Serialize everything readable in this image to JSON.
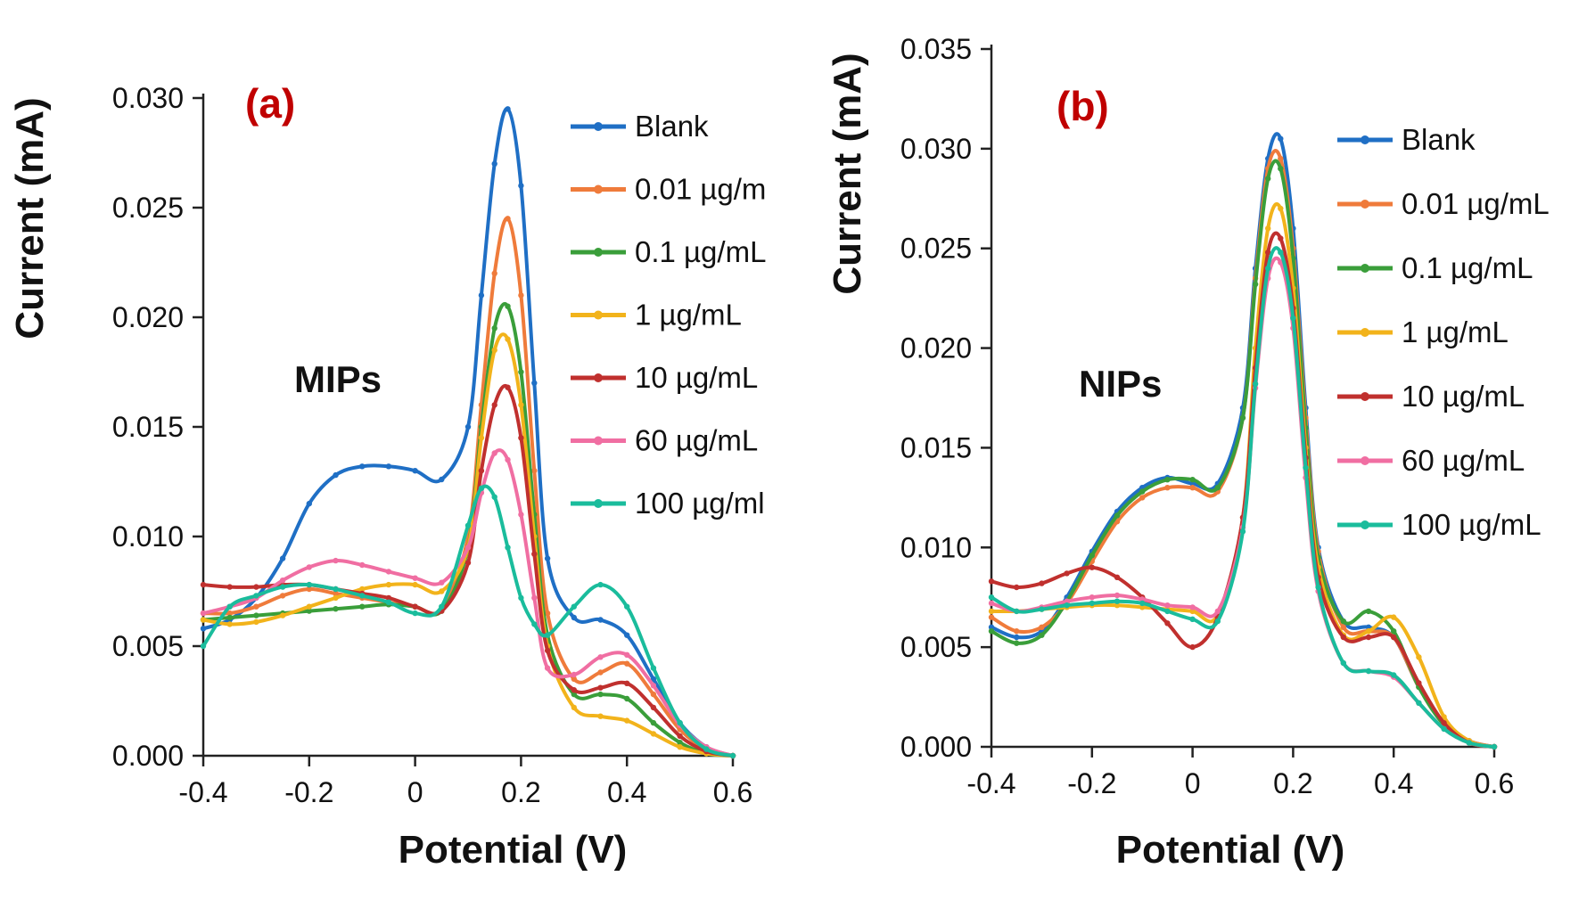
{
  "chart_data": [
    {
      "type": "line",
      "panel_label": "(a)",
      "annotation": "MIPs",
      "xlabel": "Potential  (V)",
      "ylabel": "Current (mA)",
      "xlim": [
        -0.4,
        0.6
      ],
      "ylim": [
        0,
        0.03
      ],
      "xticks": [
        -0.4,
        -0.2,
        0,
        0.2,
        0.4,
        0.6
      ],
      "xtick_labels": [
        "-0.4",
        "-0.2",
        "0",
        "0.2",
        "0.4",
        "0.6"
      ],
      "yticks": [
        0,
        0.005,
        0.01,
        0.015,
        0.02,
        0.025,
        0.03
      ],
      "ytick_labels": [
        "0.000",
        "0.005",
        "0.010",
        "0.015",
        "0.020",
        "0.025",
        "0.030"
      ],
      "legend": "right",
      "x": [
        -0.4,
        -0.35,
        -0.3,
        -0.25,
        -0.2,
        -0.15,
        -0.1,
        -0.05,
        0,
        0.05,
        0.1,
        0.125,
        0.15,
        0.175,
        0.2,
        0.225,
        0.25,
        0.3,
        0.35,
        0.4,
        0.45,
        0.5,
        0.55,
        0.6
      ],
      "series": [
        {
          "name": "Blank",
          "color": "#1f6fc5",
          "values": [
            0.0058,
            0.0062,
            0.0072,
            0.009,
            0.0115,
            0.0128,
            0.0132,
            0.0132,
            0.013,
            0.0126,
            0.015,
            0.021,
            0.027,
            0.0295,
            0.026,
            0.017,
            0.009,
            0.0063,
            0.0062,
            0.0055,
            0.0035,
            0.0015,
            0.0004,
            0
          ]
        },
        {
          "name": "0.01 µg/m",
          "color": "#ef7b3b",
          "values": [
            0.0065,
            0.0065,
            0.0068,
            0.0073,
            0.0076,
            0.0074,
            0.0072,
            0.007,
            0.0068,
            0.0067,
            0.01,
            0.016,
            0.022,
            0.0245,
            0.021,
            0.013,
            0.0065,
            0.0035,
            0.0038,
            0.0042,
            0.0028,
            0.0012,
            0.0003,
            0
          ]
        },
        {
          "name": "0.1 µg/mL",
          "color": "#3a9e3a",
          "values": [
            0.0062,
            0.0063,
            0.0064,
            0.0065,
            0.0066,
            0.0067,
            0.0068,
            0.0069,
            0.0068,
            0.0066,
            0.0095,
            0.015,
            0.0195,
            0.0205,
            0.0175,
            0.011,
            0.0055,
            0.0028,
            0.0028,
            0.0026,
            0.0015,
            0.0006,
            0.0001,
            0
          ]
        },
        {
          "name": "1 µg/mL",
          "color": "#f2b31b",
          "values": [
            0.0062,
            0.006,
            0.0061,
            0.0064,
            0.0068,
            0.0072,
            0.0076,
            0.0078,
            0.0078,
            0.0075,
            0.0095,
            0.0145,
            0.0185,
            0.019,
            0.016,
            0.01,
            0.005,
            0.0022,
            0.0018,
            0.0016,
            0.001,
            0.0004,
            0.0001,
            0
          ]
        },
        {
          "name": "10 µg/mL",
          "color": "#c0302e",
          "values": [
            0.0078,
            0.0077,
            0.0077,
            0.0078,
            0.0078,
            0.0076,
            0.0074,
            0.0072,
            0.0068,
            0.0066,
            0.0088,
            0.013,
            0.016,
            0.0168,
            0.0145,
            0.0092,
            0.0048,
            0.003,
            0.0031,
            0.0033,
            0.0022,
            0.0009,
            0.0002,
            0
          ]
        },
        {
          "name": "60 µg/mL",
          "color": "#f06ea2",
          "values": [
            0.0065,
            0.0068,
            0.0072,
            0.008,
            0.0086,
            0.0089,
            0.0087,
            0.0084,
            0.0081,
            0.0079,
            0.0095,
            0.012,
            0.0138,
            0.0135,
            0.011,
            0.0072,
            0.004,
            0.0037,
            0.0045,
            0.0046,
            0.0032,
            0.0014,
            0.0004,
            0
          ]
        },
        {
          "name": "100 µg/ml",
          "color": "#1abc9c",
          "values": [
            0.005,
            0.0068,
            0.0073,
            0.0077,
            0.0078,
            0.0076,
            0.0073,
            0.007,
            0.0065,
            0.0068,
            0.0105,
            0.0122,
            0.0118,
            0.0095,
            0.0072,
            0.006,
            0.0055,
            0.0068,
            0.0078,
            0.0068,
            0.004,
            0.0015,
            0.0003,
            0
          ]
        }
      ]
    },
    {
      "type": "line",
      "panel_label": "(b)",
      "annotation": "NIPs",
      "xlabel": "Potential   (V)",
      "ylabel": "Current (mA)",
      "xlim": [
        -0.4,
        0.6
      ],
      "ylim": [
        0,
        0.035
      ],
      "xticks": [
        -0.4,
        -0.2,
        0,
        0.2,
        0.4,
        0.6
      ],
      "xtick_labels": [
        "-0.4",
        "-0.2",
        "0",
        "0.2",
        "0.4",
        "0.6"
      ],
      "yticks": [
        0,
        0.005,
        0.01,
        0.015,
        0.02,
        0.025,
        0.03,
        0.035
      ],
      "ytick_labels": [
        "0.000",
        "0.005",
        "0.010",
        "0.015",
        "0.020",
        "0.025",
        "0.030",
        "0.035"
      ],
      "legend": "right",
      "x": [
        -0.4,
        -0.35,
        -0.3,
        -0.25,
        -0.2,
        -0.15,
        -0.1,
        -0.05,
        0,
        0.05,
        0.1,
        0.125,
        0.15,
        0.175,
        0.2,
        0.225,
        0.25,
        0.3,
        0.35,
        0.4,
        0.45,
        0.5,
        0.55,
        0.6
      ],
      "series": [
        {
          "name": "Blank",
          "color": "#1f6fc5",
          "values": [
            0.006,
            0.0055,
            0.0058,
            0.0075,
            0.0098,
            0.0118,
            0.013,
            0.0135,
            0.0132,
            0.0132,
            0.017,
            0.024,
            0.0295,
            0.0305,
            0.026,
            0.017,
            0.01,
            0.0063,
            0.006,
            0.0055,
            0.003,
            0.0012,
            0.0003,
            0
          ]
        },
        {
          "name": "0.01 µg/mL",
          "color": "#ef7b3b",
          "values": [
            0.0065,
            0.0058,
            0.006,
            0.0072,
            0.0093,
            0.0113,
            0.0125,
            0.013,
            0.013,
            0.0128,
            0.0165,
            0.0235,
            0.029,
            0.0295,
            0.025,
            0.0165,
            0.0098,
            0.006,
            0.0058,
            0.0055,
            0.003,
            0.0012,
            0.0003,
            0
          ]
        },
        {
          "name": "0.1 µg/mL",
          "color": "#3a9e3a",
          "values": [
            0.0058,
            0.0052,
            0.0056,
            0.0073,
            0.0096,
            0.0116,
            0.0128,
            0.0134,
            0.0134,
            0.013,
            0.0165,
            0.0232,
            0.0285,
            0.029,
            0.0245,
            0.016,
            0.0095,
            0.0063,
            0.0068,
            0.0058,
            0.003,
            0.0011,
            0.0002,
            0
          ]
        },
        {
          "name": "1 µg/mL",
          "color": "#f2b31b",
          "values": [
            0.0068,
            0.0068,
            0.0069,
            0.007,
            0.0071,
            0.0071,
            0.007,
            0.0069,
            0.0068,
            0.0066,
            0.0115,
            0.02,
            0.026,
            0.027,
            0.023,
            0.015,
            0.009,
            0.0056,
            0.0058,
            0.0065,
            0.0045,
            0.0015,
            0.0003,
            0
          ]
        },
        {
          "name": "10 µg/mL",
          "color": "#c0302e",
          "values": [
            0.0083,
            0.008,
            0.0082,
            0.0087,
            0.009,
            0.0085,
            0.0075,
            0.0062,
            0.005,
            0.0065,
            0.0115,
            0.019,
            0.0248,
            0.0255,
            0.022,
            0.0145,
            0.0085,
            0.0055,
            0.0055,
            0.0055,
            0.0032,
            0.0012,
            0.0002,
            0
          ]
        },
        {
          "name": "60 µg/mL",
          "color": "#f06ea2",
          "values": [
            0.0072,
            0.0068,
            0.007,
            0.0073,
            0.0075,
            0.0076,
            0.0074,
            0.0071,
            0.007,
            0.0068,
            0.011,
            0.018,
            0.0235,
            0.0243,
            0.021,
            0.0135,
            0.0078,
            0.0042,
            0.0038,
            0.0035,
            0.0022,
            0.0009,
            0.0002,
            0
          ]
        },
        {
          "name": "100 µg/mL",
          "color": "#1abc9c",
          "values": [
            0.0075,
            0.0068,
            0.0069,
            0.0071,
            0.0072,
            0.0073,
            0.0072,
            0.0068,
            0.0064,
            0.0063,
            0.0108,
            0.0182,
            0.024,
            0.0248,
            0.0215,
            0.014,
            0.008,
            0.0042,
            0.0038,
            0.0036,
            0.0022,
            0.0009,
            0.0002,
            0
          ]
        }
      ]
    }
  ]
}
